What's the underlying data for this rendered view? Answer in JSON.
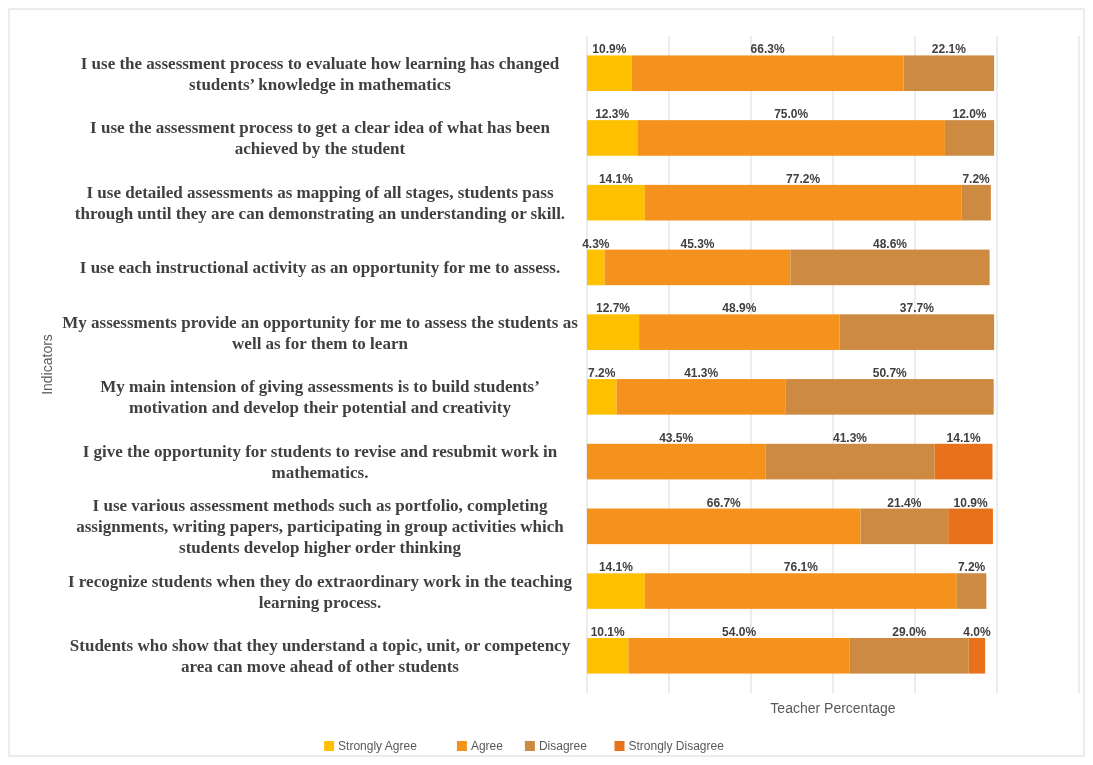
{
  "chart_data": {
    "type": "bar",
    "orientation": "horizontal",
    "stacked": true,
    "xlabel": "Teacher Percentage",
    "ylabel": "Indicators",
    "categories": [
      "I use the assessment process to evaluate how learning has changed students’ knowledge in mathematics",
      "I use the assessment process to get a clear idea of what has been achieved by the student",
      "I use detailed assessments as mapping of all stages, students pass through until they are can demonstrating an understanding or skill.",
      "I use each instructional activity as an opportunity for me to assess.",
      "My assessments provide an opportunity for me to assess the students as well as for them to learn",
      "My main intension of giving assessments is to build students’ motivation and develop their potential and creativity",
      "I give the opportunity for students to revise and resubmit work in mathematics.",
      "I use various assessment methods such as portfolio, completing assignments, writing papers, participating in group activities which students develop higher order thinking",
      "I recognize students when they do extraordinary work in the teaching learning process.",
      "Students who show that they understand a topic, unit, or competency area can move ahead of other students"
    ],
    "series": [
      {
        "name": "Strongly Agree",
        "color": "#ffc000",
        "values": [
          10.9,
          12.3,
          14.1,
          4.3,
          12.7,
          7.2,
          null,
          null,
          14.1,
          10.1
        ],
        "value_labels": [
          "10.9%",
          "12.3%",
          "14.1%",
          "4.3%",
          "12.7%",
          "7.2%",
          null,
          null,
          "14.1%",
          "10.1%"
        ]
      },
      {
        "name": "Agree",
        "color": "#f5921e",
        "values": [
          66.3,
          75.0,
          77.2,
          45.3,
          48.9,
          41.3,
          43.5,
          66.7,
          76.1,
          54.0
        ],
        "value_labels": [
          "66.3%",
          "75.0%",
          "77.2%",
          "45.3%",
          "48.9%",
          "41.3%",
          "43.5%",
          "66.7%",
          "76.1%",
          "54.0%"
        ]
      },
      {
        "name": "Disagree",
        "color": "#cd8b42",
        "values": [
          22.1,
          12.0,
          7.2,
          48.6,
          37.7,
          50.7,
          41.3,
          21.4,
          7.2,
          29.0
        ],
        "value_labels": [
          "22.1%",
          "12.0%",
          "7.2%",
          "48.6%",
          "37.7%",
          "50.7%",
          "41.3%",
          "21.4%",
          "7.2%",
          "29.0%"
        ]
      },
      {
        "name": "Strongly Disagree",
        "color": "#e8711b",
        "values": [
          null,
          null,
          null,
          null,
          null,
          null,
          14.1,
          10.9,
          null,
          4.0
        ],
        "value_labels": [
          null,
          null,
          null,
          null,
          null,
          null,
          "14.1%",
          "10.9%",
          null,
          "4.0%"
        ]
      }
    ],
    "xlim": [
      0,
      120
    ],
    "xticks": [
      {
        "value": 0,
        "label": null
      },
      {
        "value": 20,
        "label": null
      },
      {
        "value": 40,
        "label": null
      },
      {
        "value": 60,
        "label": null
      },
      {
        "value": 80,
        "label": null
      },
      {
        "value": 100,
        "label": null
      },
      {
        "value": 120,
        "label": null
      }
    ],
    "tick_labels": "y",
    "grid": "x",
    "legend": "bottom"
  }
}
